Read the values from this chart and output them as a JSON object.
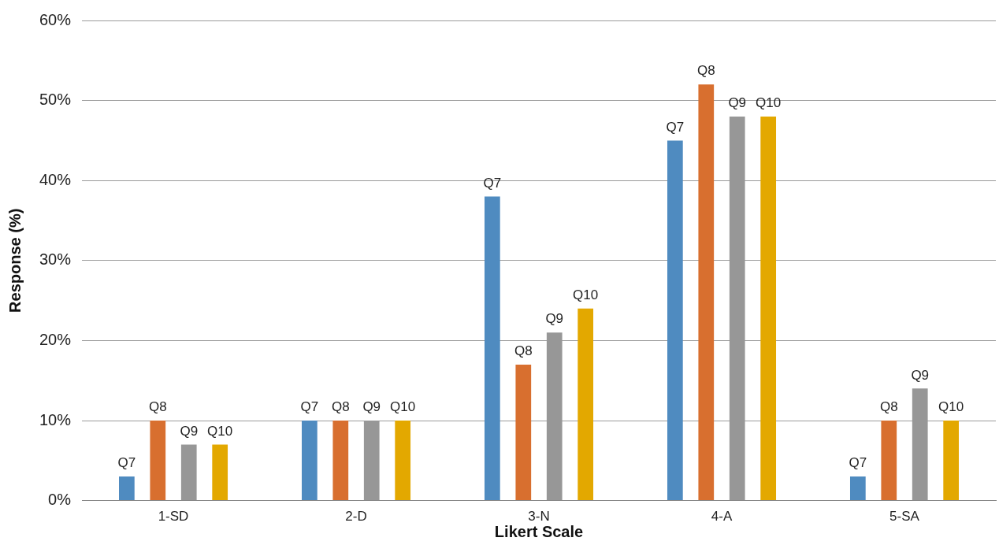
{
  "chart_data": {
    "type": "bar",
    "xlabel": "Likert Scale",
    "ylabel": "Response (%)",
    "categories": [
      "1-SD",
      "2-D",
      "3-N",
      "4-A",
      "5-SA"
    ],
    "series": [
      {
        "name": "Q7",
        "color": "#4f8bc0",
        "values": [
          3,
          10,
          38,
          45,
          3
        ]
      },
      {
        "name": "Q8",
        "color": "#d86f2f",
        "values": [
          10,
          10,
          17,
          52,
          10
        ]
      },
      {
        "name": "Q9",
        "color": "#979797",
        "values": [
          7,
          10,
          21,
          48,
          14
        ]
      },
      {
        "name": "Q10",
        "color": "#e3a800",
        "values": [
          7,
          10,
          24,
          48,
          10
        ]
      }
    ],
    "ylim": [
      0,
      60
    ],
    "yticks": [
      {
        "value": 0,
        "label": "0%"
      },
      {
        "value": 10,
        "label": "10%"
      },
      {
        "value": 20,
        "label": "20%"
      },
      {
        "value": 30,
        "label": "30%"
      },
      {
        "value": 40,
        "label": "40%"
      },
      {
        "value": 50,
        "label": "50%"
      },
      {
        "value": 60,
        "label": "60%"
      }
    ],
    "grid": "y",
    "legend": false
  }
}
